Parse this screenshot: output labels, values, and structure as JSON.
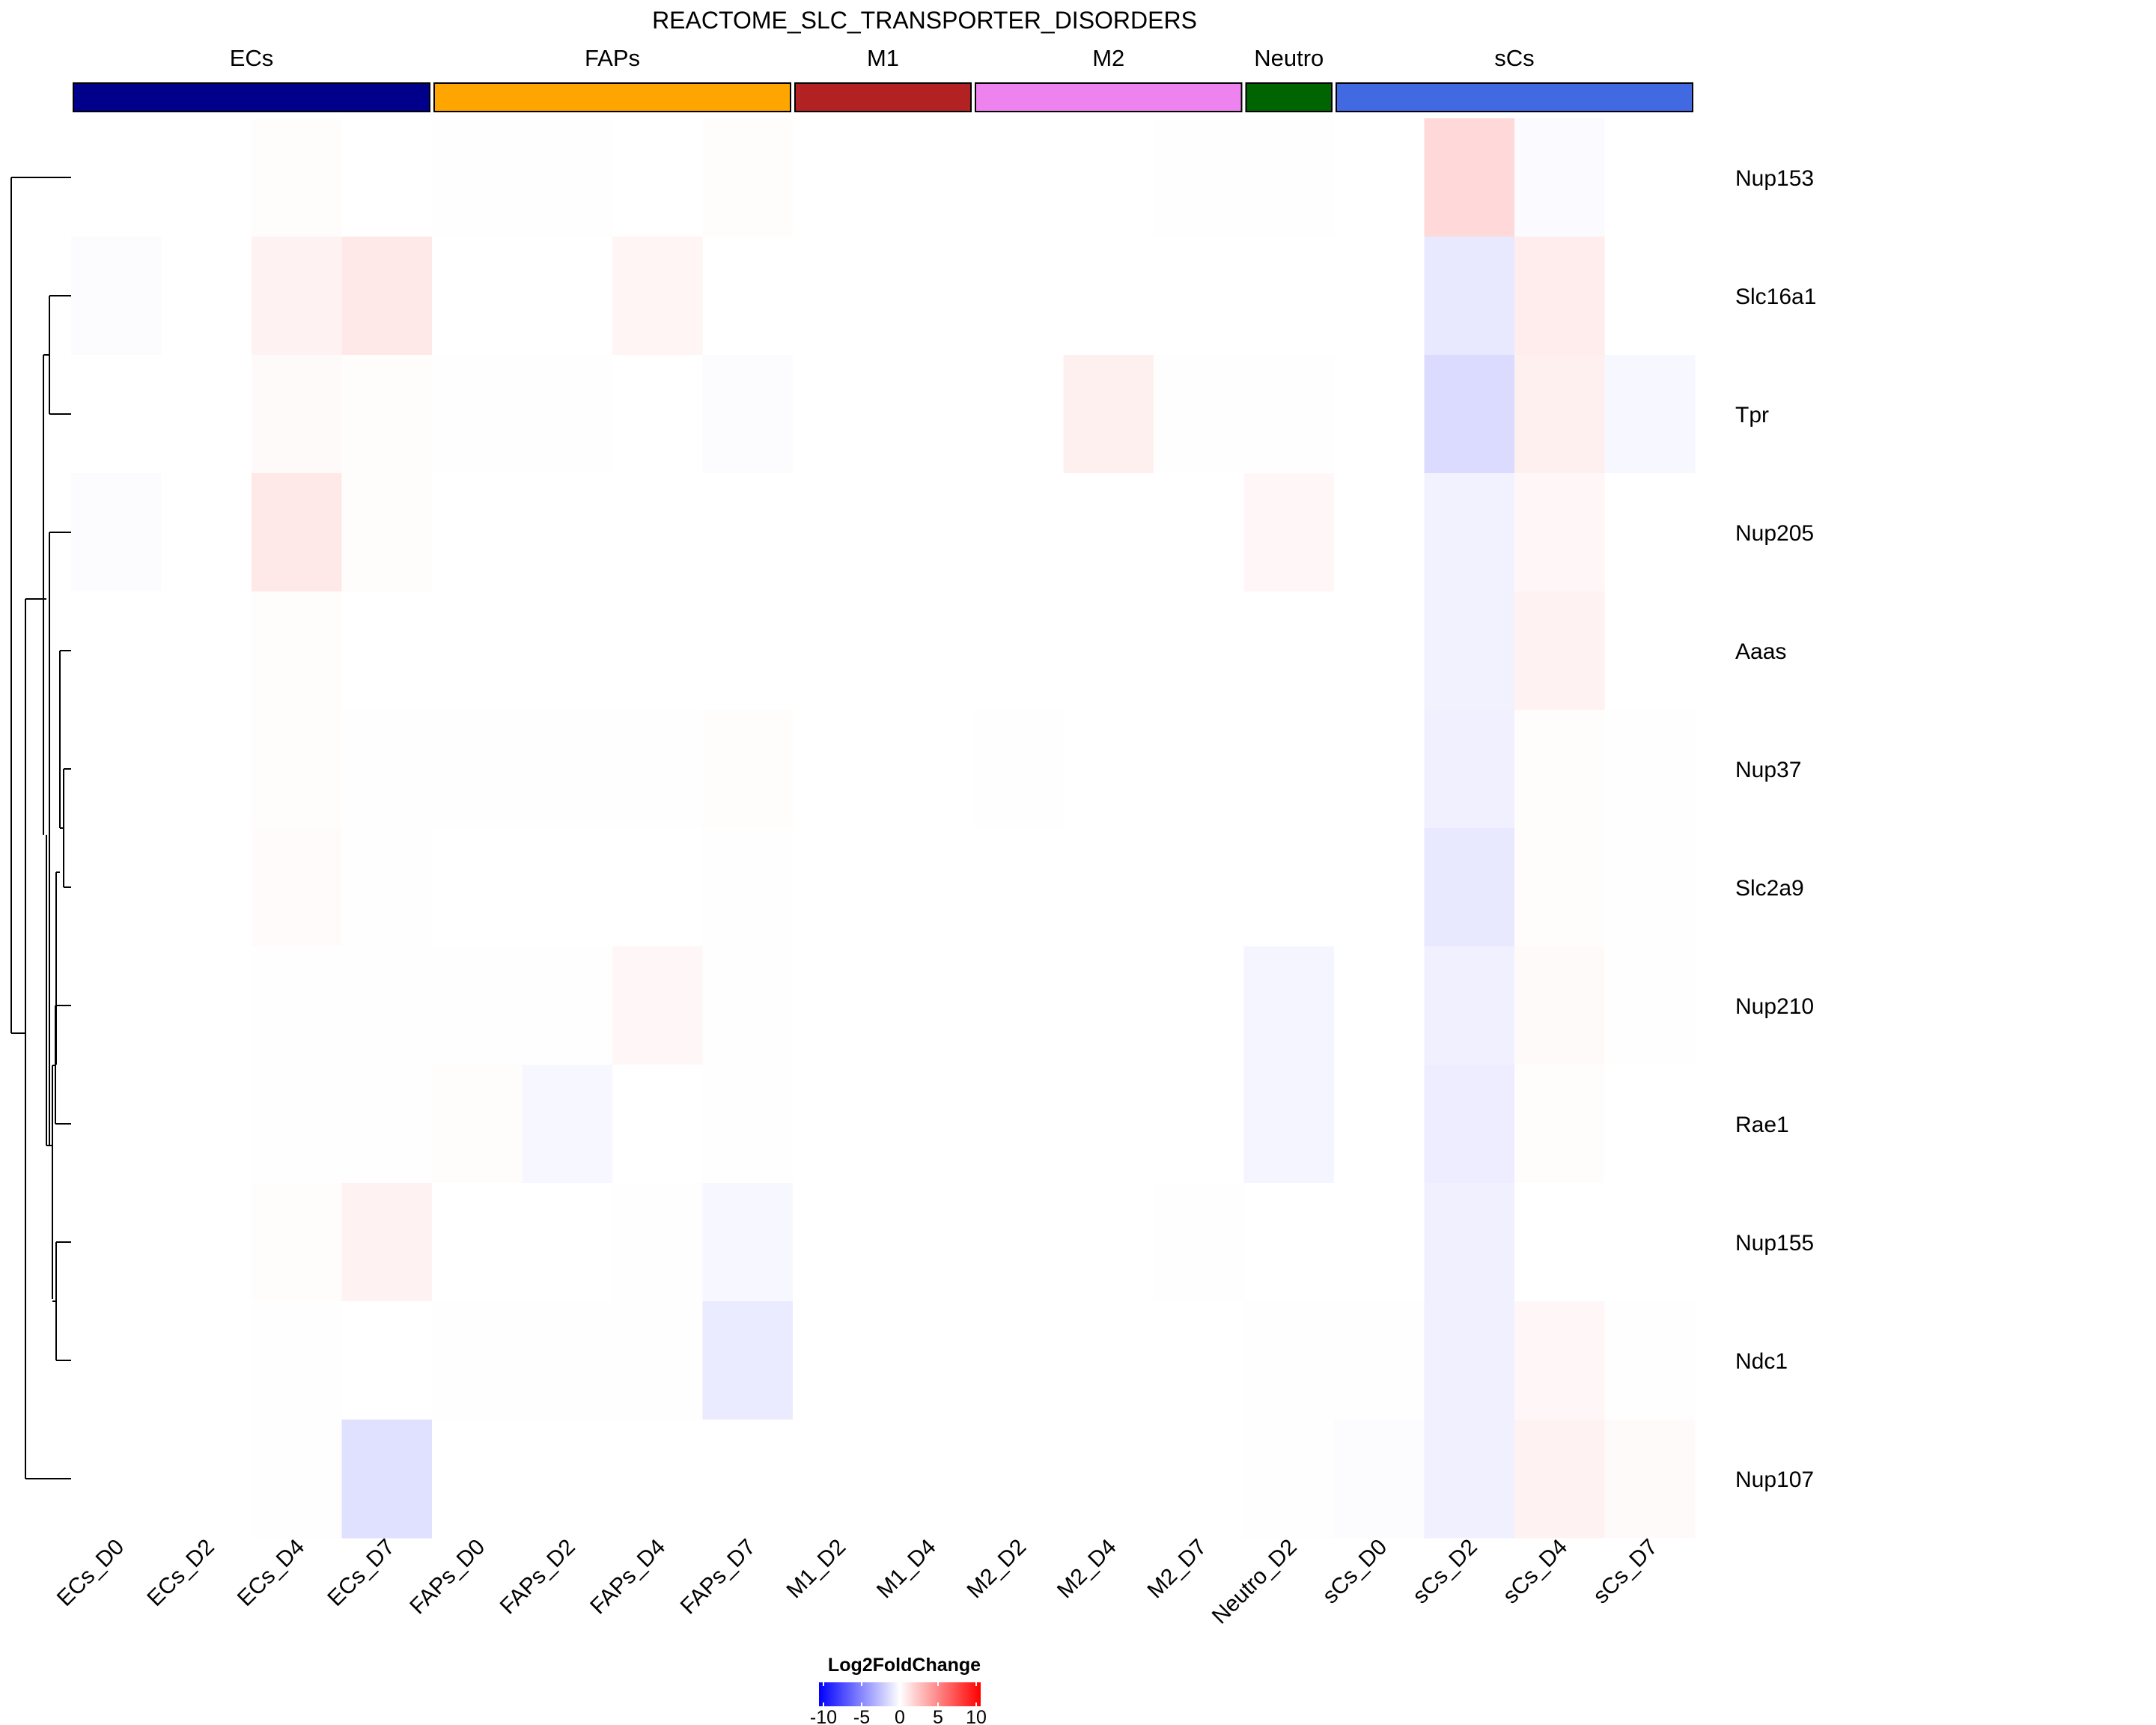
{
  "chart_data": {
    "type": "heatmap",
    "title": "REACTOME_SLC_TRANSPORTER_DISORDERS",
    "columns": [
      "ECs_D0",
      "ECs_D2",
      "ECs_D4",
      "ECs_D7",
      "FAPs_D0",
      "FAPs_D2",
      "FAPs_D4",
      "FAPs_D7",
      "M1_D2",
      "M1_D4",
      "M2_D2",
      "M2_D4",
      "M2_D7",
      "Neutro_D2",
      "sCs_D0",
      "sCs_D2",
      "sCs_D4",
      "sCs_D7"
    ],
    "rows": [
      "Nup153",
      "Slc16a1",
      "Tpr",
      "Nup205",
      "Aaas",
      "Nup37",
      "Slc2a9",
      "Nup210",
      "Rae1",
      "Nup155",
      "Ndc1",
      "Nup107"
    ],
    "groups": [
      {
        "name": "ECs",
        "color": "#00008B",
        "span": 4
      },
      {
        "name": "FAPs",
        "color": "#FFA500",
        "span": 4
      },
      {
        "name": "M1",
        "color": "#B22222",
        "span": 2
      },
      {
        "name": "M2",
        "color": "#EE82EE",
        "span": 3
      },
      {
        "name": "Neutro",
        "color": "#006400",
        "span": 1
      },
      {
        "name": "sCs",
        "color": "#4169E1",
        "span": 4
      }
    ],
    "values": [
      [
        0,
        0,
        0.1,
        0,
        0.05,
        0.05,
        0,
        0.1,
        0,
        0,
        0,
        0,
        0.05,
        -0.05,
        0,
        1.5,
        -0.2,
        0
      ],
      [
        -0.1,
        0,
        0.5,
        0.9,
        0,
        0,
        0.4,
        0,
        0,
        0,
        0,
        0,
        0,
        0,
        0,
        -0.9,
        0.7,
        0
      ],
      [
        0,
        0,
        0.2,
        0.1,
        0.05,
        0.05,
        0,
        -0.1,
        0,
        0,
        0,
        0.6,
        0.05,
        -0.05,
        0,
        -1.4,
        0.6,
        -0.3
      ],
      [
        -0.1,
        0,
        0.9,
        0.1,
        0,
        0,
        0,
        0,
        0,
        0,
        0,
        0,
        0,
        0.3,
        0,
        -0.5,
        0.3,
        0
      ],
      [
        0,
        0,
        0.1,
        0,
        0,
        0,
        0,
        0,
        0,
        0,
        0,
        0,
        0,
        0,
        0,
        -0.5,
        0.5,
        0
      ],
      [
        0,
        0,
        0.1,
        0.05,
        0.05,
        0.05,
        0.05,
        0.1,
        0,
        0,
        -0.05,
        0,
        0,
        0,
        0,
        -0.6,
        0.1,
        0.05
      ],
      [
        0,
        0,
        0.15,
        0.05,
        0,
        0,
        0,
        0.05,
        0,
        0,
        0,
        0,
        0,
        0,
        0,
        -0.9,
        0.1,
        0.05
      ],
      [
        0,
        0,
        0.05,
        0.05,
        0.05,
        0.05,
        0.3,
        0.05,
        0,
        0,
        0,
        0,
        0,
        -0.4,
        0,
        -0.6,
        0.2,
        0.05
      ],
      [
        0,
        0,
        0.05,
        0.05,
        0.1,
        -0.3,
        0,
        0.05,
        0,
        0,
        0,
        0,
        0,
        -0.4,
        0,
        -0.7,
        0.1,
        0
      ],
      [
        0,
        0,
        0.1,
        0.5,
        0,
        0,
        0.05,
        -0.3,
        0,
        0,
        0,
        0,
        0.05,
        0,
        0,
        -0.6,
        0,
        0
      ],
      [
        0,
        0,
        0.05,
        0,
        0.05,
        0.05,
        0.05,
        -0.8,
        0,
        0,
        0,
        0,
        0,
        -0.05,
        -0.05,
        -0.6,
        0.3,
        0.05
      ],
      [
        0,
        0,
        0.05,
        -1.2,
        0,
        0,
        0,
        0,
        0,
        0,
        0,
        0,
        0,
        -0.05,
        -0.1,
        -0.6,
        0.5,
        0.2
      ]
    ],
    "legend": {
      "title": "Log2FoldChange",
      "min": -10,
      "max": 10,
      "ticks": [
        -10,
        -5,
        0,
        5,
        10
      ],
      "tick_labels": [
        "-10",
        "-5",
        "0",
        "5",
        "10"
      ],
      "colors": {
        "low": "#0000FF",
        "mid": "#FFFFFF",
        "high": "#FF0000"
      },
      "placement": "bottom-center"
    },
    "dendrogram": "rows"
  }
}
